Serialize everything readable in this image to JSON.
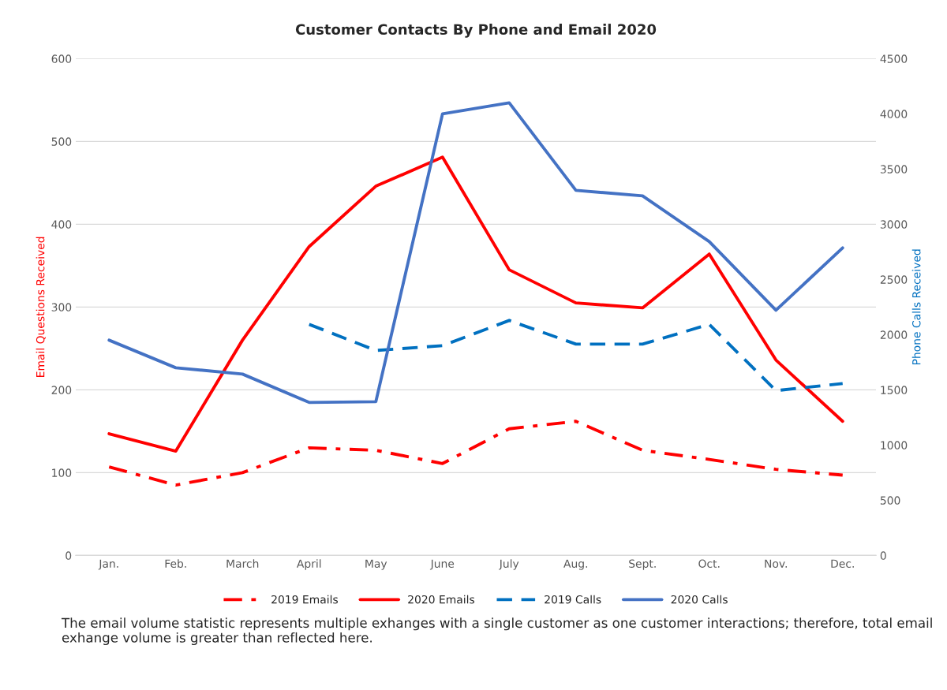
{
  "chart_data": {
    "type": "line",
    "title": "Customer Contacts By Phone and Email 2020",
    "ylabel": "Email Questions Received",
    "y2label": "Phone Calls Received",
    "categories": [
      "Jan.",
      "Feb.",
      "March",
      "April",
      "May",
      "June",
      "July",
      "Aug.",
      "Sept.",
      "Oct.",
      "Nov.",
      "Dec."
    ],
    "series": [
      {
        "name": "2019 Emails",
        "color": "#ff0000",
        "line_style": "dashdot",
        "values": [
          107,
          85,
          100,
          130,
          127,
          111,
          153,
          162,
          127,
          116,
          104,
          97
        ]
      },
      {
        "name": "2020 Emails",
        "color": "#ff0000",
        "line_style": "solid",
        "values": [
          147,
          126,
          260,
          373,
          446,
          481,
          345,
          305,
          299,
          364,
          236,
          162
        ]
      },
      {
        "name": "2019 Calls",
        "color": "#0070c0",
        "line_style": "dashed",
        "axis": "y2",
        "values": [
          null,
          null,
          null,
          2093,
          1857,
          1900,
          2129,
          1914,
          1914,
          2093,
          1493,
          1557
        ]
      },
      {
        "name": "2020 Calls",
        "color": "#4472c4",
        "line_style": "solid",
        "axis": "y2",
        "values": [
          1950,
          1700,
          1643,
          1386,
          1393,
          4000,
          4100,
          3307,
          3257,
          2843,
          2221,
          2786
        ]
      }
    ],
    "ylim": [
      0,
      600
    ],
    "yticks": [
      0,
      100,
      200,
      300,
      400,
      500,
      600
    ],
    "y2lim": [
      0,
      4500
    ],
    "y2ticks": [
      0,
      500,
      1000,
      1500,
      2000,
      2500,
      3000,
      3500,
      4000,
      4500
    ],
    "grid": "y",
    "legend": "bottom",
    "marker": "none",
    "annotations": [
      "The email volume statistic represents multiple exhanges with a single customer as one customer interactions; therefore, total email exhange volume is greater than reflected here."
    ]
  }
}
